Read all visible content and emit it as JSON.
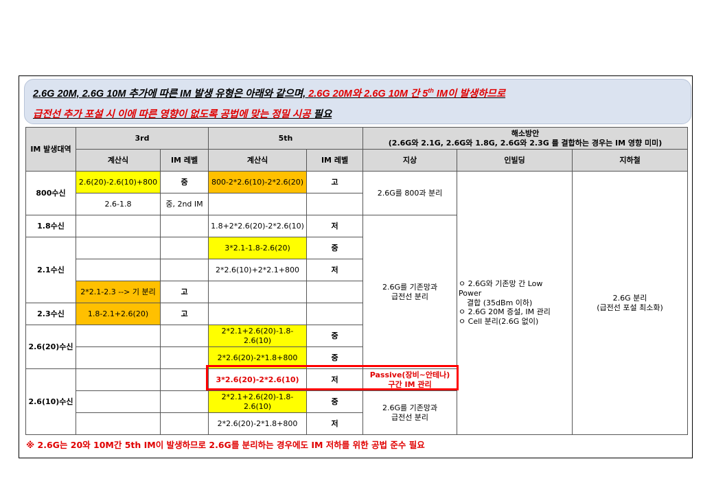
{
  "banner": {
    "line1_black": "2.6G 20M, 2.6G 10M 추가에 따른 IM 발생 유형은 아래와 같으며, ",
    "line1_red": "2.6G 20M와 2.6G 10M 간 5",
    "line1_sup": "th",
    "line1_red_tail": " IM이 발생하므로 ",
    "line2_red": "급전선 추가 포설 시 이에 따른 영향이 없도록 공법에 맞는 정밀 시공",
    "line2_black": " 필요"
  },
  "table": {
    "headers": {
      "band": "IM 발생대역",
      "third": "3rd",
      "fifth": "5th",
      "solution": "해소방안",
      "solution_note": "(2.6G와 2.1G, 2.6G와 1.8G, 2.6G와 2.3G 를 결합하는 경우는 IM 영향 미미)",
      "formula": "계산식",
      "level": "IM 레벨",
      "ground": "지상",
      "inbuilding": "인빌딩",
      "subway": "지하철"
    },
    "rows": [
      {
        "third_formula": "2.6(20)-2.6(10)+800",
        "third_level": "중",
        "fifth_formula": "800-2*2.6(10)-2*2.6(20)",
        "fifth_level": "고"
      },
      {
        "third_formula": "2.6-1.8",
        "third_level": "중, 2nd IM",
        "fifth_formula": "",
        "fifth_level": ""
      },
      {
        "third_formula": "",
        "third_level": "",
        "fifth_formula": "1.8+2*2.6(20)-2*2.6(10)",
        "fifth_level": "저"
      },
      {
        "third_formula": "",
        "third_level": "",
        "fifth_formula": "3*2.1-1.8-2.6(20)",
        "fifth_level": "중"
      },
      {
        "third_formula": "",
        "third_level": "",
        "fifth_formula": "2*2.6(10)+2*2.1+800",
        "fifth_level": "저"
      },
      {
        "third_formula": "2*2.1-2.3 --> 기 분리",
        "third_level": "고",
        "fifth_formula": "",
        "fifth_level": ""
      },
      {
        "third_formula": "1.8-2.1+2.6(20)",
        "third_level": "고",
        "fifth_formula": "",
        "fifth_level": ""
      },
      {
        "third_formula": "",
        "third_level": "",
        "fifth_formula": "2*2.1+2.6(20)-1.8-2.6(10)",
        "fifth_level": "중"
      },
      {
        "third_formula": "",
        "third_level": "",
        "fifth_formula": "2*2.6(20)-2*1.8+800",
        "fifth_level": "중"
      },
      {
        "third_formula": "",
        "third_level": "",
        "fifth_formula": "3*2.6(20)-2*2.6(10)",
        "fifth_level": "저"
      },
      {
        "third_formula": "",
        "third_level": "",
        "fifth_formula": "2*2.1+2.6(20)-1.8-2.6(10)",
        "fifth_level": "중"
      },
      {
        "third_formula": "",
        "third_level": "",
        "fifth_formula": "2*2.6(20)-2*1.8+800",
        "fifth_level": "저"
      }
    ],
    "bands": {
      "b800": "800수신",
      "b18": "1.8수신",
      "b21": "2.1수신",
      "b23": "2.3수신",
      "b2620": "2.6(20)수신",
      "b2610": "2.6(10)수신"
    },
    "ground": {
      "g1": "2.6G를 800과 분리",
      "g2_line1": "2.6G를 기존망과",
      "g2_line2": "급전선 분리",
      "g3_line1": "Passive(장비~안테나)",
      "g3_line2": "구간 IM 관리",
      "g4_line1": "2.6G를 기존망과",
      "g4_line2": "급전선 분리"
    },
    "inbuilding": {
      "l1": "ㅇ 2.6G와 기존망 간 Low",
      "l2": "Power",
      "l3": "결합 (35dBm 이하)",
      "l4": "ㅇ 2.6G 20M 증설, IM 관리",
      "l5": "ㅇ Cell 분리(2.6G 없이)"
    },
    "subway": {
      "l1": "2.6G 분리",
      "l2": "(급전선 포설 최소화)"
    }
  },
  "footnote": "※ 2.6G는 20와 10M간 5th IM이 발생하므로 2.6G를 분리하는 경우에도 IM 저하를 위한 공법 준수 필요",
  "colors": {
    "yellow": "#ffff00",
    "orange": "#ffc000",
    "red": "#e00000",
    "header_gray": "#d9d9d9",
    "banner_blue": "#dbe3f0"
  }
}
